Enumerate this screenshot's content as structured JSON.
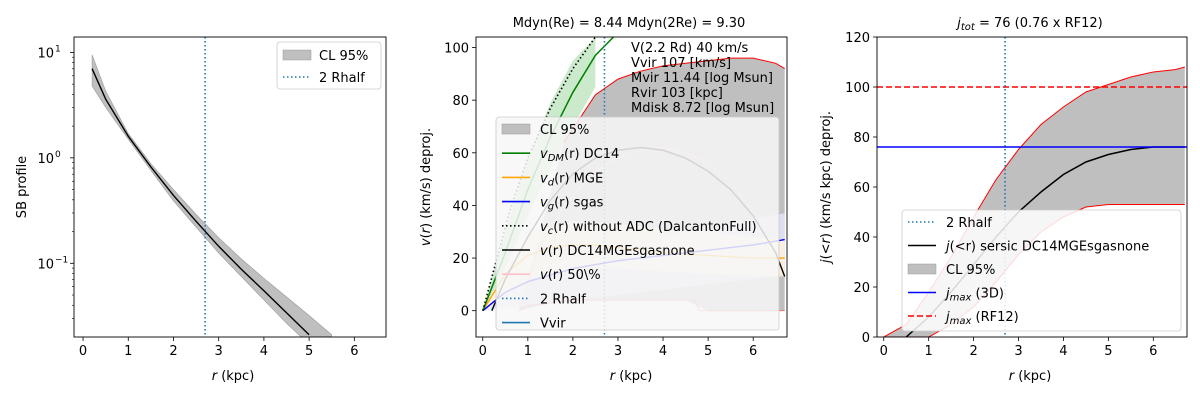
{
  "chart_data": [
    {
      "type": "line",
      "ylabel": "SB profile",
      "xlabel": "r (kpc)",
      "yscale": "log",
      "xlim": [
        -0.2,
        6.7
      ],
      "ylim": [
        0.02,
        14
      ],
      "xticks": [
        "0",
        "1",
        "2",
        "3",
        "4",
        "5",
        "6"
      ],
      "yticks": [
        {
          "value": 0.1,
          "label": "10^{-1}",
          "base": "10",
          "exp": "−1"
        },
        {
          "value": 1,
          "label": "10^{0}",
          "base": "10",
          "exp": "0"
        },
        {
          "value": 10,
          "label": "10^{1}",
          "base": "10",
          "exp": "1"
        }
      ],
      "rhalf2": 2.7,
      "series": [
        {
          "name": "profile",
          "x": [
            0.2,
            0.5,
            1,
            1.5,
            2,
            2.5,
            3,
            3.5,
            4,
            4.5,
            5
          ],
          "y": [
            7.0,
            3.6,
            1.6,
            0.82,
            0.44,
            0.25,
            0.145,
            0.088,
            0.055,
            0.034,
            0.021
          ]
        },
        {
          "name": "CL 95%",
          "x": [
            0.2,
            0.5,
            1,
            1.5,
            2,
            2.5,
            3,
            3.5,
            4,
            4.5,
            5,
            5.5
          ],
          "upper": [
            9.5,
            4.3,
            1.7,
            0.88,
            0.5,
            0.29,
            0.175,
            0.11,
            0.072,
            0.048,
            0.032,
            0.021
          ],
          "lower": [
            4.8,
            3.0,
            1.5,
            0.76,
            0.39,
            0.22,
            0.125,
            0.075,
            0.045,
            0.027,
            0.017,
            0.011
          ]
        }
      ],
      "legend": [
        {
          "label": "CL 95%",
          "kind": "patch",
          "color": "#bfbfbf"
        },
        {
          "label": "2 Rhalf",
          "kind": "dotted",
          "color": "#1f77b4"
        }
      ],
      "legend_position": "top-right"
    },
    {
      "type": "line",
      "title": "Mdyn(Re) = 8.44  Mdyn(2Re) = 9.30",
      "ylabel": "v(r) (km/s) deproj.",
      "xlabel": "r (kpc)",
      "xlim": [
        -0.15,
        6.75
      ],
      "ylim": [
        -10,
        104
      ],
      "xticks": [
        "0",
        "1",
        "2",
        "3",
        "4",
        "5",
        "6"
      ],
      "yticks": [
        "0",
        "20",
        "40",
        "60",
        "80",
        "100"
      ],
      "rhalf2": 2.7,
      "annotations": [
        "V(2.2 Rd) 40 km/s",
        "Vvir 107 [km/s]",
        "Mvir 11.44 [log Msun]",
        "Rvir 103 [kpc]",
        "Mdisk 8.72 [log Msun]"
      ],
      "series": [
        {
          "name": "v_DM(r) DC14",
          "color": "#008000",
          "x": [
            0,
            0.5,
            1,
            1.5,
            2,
            2.5,
            2.9
          ],
          "y": [
            0,
            22,
            46,
            66,
            83,
            97,
            104
          ]
        },
        {
          "name": "v_DM band",
          "color": "#008000",
          "x": [
            0,
            0.5,
            1,
            1.5,
            2,
            2.5
          ],
          "upper": [
            0,
            30,
            58,
            79,
            95,
            104
          ],
          "lower": [
            0,
            16,
            36,
            54,
            70,
            85
          ]
        },
        {
          "name": "v_c(r) without ADC",
          "color": "#000000",
          "x": [
            0,
            0.3,
            0.6,
            1,
            1.5,
            2,
            2.5,
            2.9
          ],
          "y": [
            0,
            19,
            38,
            58,
            77,
            92,
            104,
            110
          ]
        },
        {
          "name": "v(r) DC14MGEsgasnone",
          "color": "#000000",
          "x": [
            0.2,
            0.5,
            1,
            1.5,
            2,
            2.5,
            3,
            3.5,
            4,
            4.5,
            5,
            5.5,
            6,
            6.5,
            6.7
          ],
          "y": [
            0,
            12,
            28,
            42,
            52,
            58,
            61,
            62,
            61,
            58,
            53,
            46,
            36,
            22,
            13
          ]
        },
        {
          "name": "v_g(r) sgas",
          "color": "#0000ff",
          "x": [
            0,
            0.5,
            1,
            2,
            3,
            4,
            5,
            6,
            6.7
          ],
          "y": [
            0,
            7,
            11,
            16,
            19,
            21,
            23,
            25,
            27
          ]
        },
        {
          "name": "v_d(r) MGE",
          "color": "#ffa500",
          "x": [
            0,
            0.5,
            1,
            1.5,
            2,
            2.5,
            3,
            4,
            5,
            6,
            6.7
          ],
          "y": [
            0,
            14,
            21,
            24,
            25,
            25,
            24,
            22,
            21,
            20,
            20
          ]
        },
        {
          "name": "CL 95% upper",
          "color": "#ff0000",
          "x": [
            1.8,
            2.5,
            3,
            3.5,
            4,
            4.5,
            5,
            5.5,
            6,
            6.5,
            6.7
          ],
          "y": [
            64,
            82,
            88,
            91,
            93,
            94,
            95,
            96,
            96,
            94,
            92
          ]
        },
        {
          "name": "v 50% lower",
          "color": "#ff9999",
          "x": [
            0.8,
            1,
            1.5,
            2,
            2.5,
            3,
            3.5,
            4,
            4.5,
            4.7,
            4.8,
            6,
            6.7
          ],
          "y": [
            0,
            2,
            3,
            4,
            4,
            4,
            4,
            4,
            4,
            4,
            0,
            0,
            0
          ]
        }
      ],
      "legend": [
        {
          "label": "CL 95%",
          "kind": "patch",
          "color": "#bfbfbf"
        },
        {
          "label": "$v_{DM}(r)$ DC14",
          "main": "v",
          "sub": "DM",
          "rest": "(r) DC14",
          "kind": "line",
          "color": "#008000"
        },
        {
          "label": "$v_d(r)$ MGE",
          "main": "v",
          "sub": "d",
          "rest": "(r) MGE",
          "kind": "line",
          "color": "#ffa500"
        },
        {
          "label": "$v_g(r)$ sgas",
          "main": "v",
          "sub": "g",
          "rest": "(r) sgas",
          "kind": "line",
          "color": "#0000ff"
        },
        {
          "label": "$v_c(r)$ without ADC (DalcantonFull)",
          "main": "v",
          "sub": "c",
          "rest": "(r) without ADC (DalcantonFull)",
          "kind": "dotted",
          "color": "#000000"
        },
        {
          "label": "$v(r)$ DC14MGEsgasnone",
          "main": "v",
          "sub": "",
          "rest": "(r) DC14MGEsgasnone",
          "kind": "line",
          "color": "#000000"
        },
        {
          "label": "$v(r)$ 50\\%",
          "main": "v",
          "sub": "",
          "rest": "(r) 50\\%",
          "kind": "line",
          "color": "#ffc0cb"
        },
        {
          "label": "2 Rhalf",
          "kind": "dotted",
          "color": "#1f77b4"
        },
        {
          "label": "Vvir",
          "kind": "line",
          "color": "#1f77b4"
        }
      ],
      "legend_position": "center-left"
    },
    {
      "type": "line",
      "title": "j_tot = 76 (0.76 x RF12)",
      "title_rest": " = 76 (0.76 x RF12)",
      "ylabel": "j(<r) (km/s kpc) deproj.",
      "xlabel": "r (kpc)",
      "xlim": [
        -0.15,
        6.75
      ],
      "ylim": [
        0,
        120
      ],
      "xticks": [
        "0",
        "1",
        "2",
        "3",
        "4",
        "5",
        "6"
      ],
      "yticks": [
        "0",
        "20",
        "40",
        "60",
        "80",
        "100",
        "120"
      ],
      "rhalf2": 2.7,
      "jmax_3d": 76,
      "jmax_rf12": 100,
      "series": [
        {
          "name": "j(<r) sersic DC14MGEsgasnone",
          "color": "#000000",
          "x": [
            0.5,
            1,
            1.5,
            2,
            2.5,
            3,
            3.5,
            4,
            4.5,
            5,
            5.5,
            6,
            6.5,
            6.7
          ],
          "y": [
            0,
            8,
            18,
            29,
            40,
            50,
            58,
            65,
            70,
            73,
            75,
            76,
            76,
            76
          ]
        },
        {
          "name": "CL 95%",
          "x": [
            0,
            0.5,
            1,
            1.5,
            2,
            2.5,
            3,
            3.5,
            4,
            4.5,
            5,
            5.5,
            6,
            6.5,
            6.7
          ],
          "upper": [
            0,
            5,
            18,
            32,
            48,
            63,
            75,
            85,
            92,
            98,
            101,
            104,
            106,
            107,
            108
          ],
          "lower": [
            0,
            0,
            0,
            5,
            12,
            22,
            33,
            42,
            48,
            52,
            53,
            53,
            53,
            53,
            53
          ]
        }
      ],
      "legend": [
        {
          "label": "2 Rhalf",
          "kind": "dotted",
          "color": "#1f77b4"
        },
        {
          "label": "$j(<r)$ sersic DC14MGEsgasnone",
          "main": "j",
          "sub": "",
          "rest": "(<r) sersic DC14MGEsgasnone",
          "kind": "line",
          "color": "#000000"
        },
        {
          "label": "CL 95\\%",
          "kind": "patch",
          "color": "#bfbfbf"
        },
        {
          "label": "$j_{max}$ (3D)",
          "main": "j",
          "sub": "max",
          "rest": " (3D)",
          "kind": "line",
          "color": "#0000ff"
        },
        {
          "label": "$j_{max}$ (RF12)",
          "main": "j",
          "sub": "max",
          "rest": " (RF12)",
          "kind": "dashed",
          "color": "#ff0000"
        }
      ],
      "legend_position": "lower-right"
    }
  ]
}
